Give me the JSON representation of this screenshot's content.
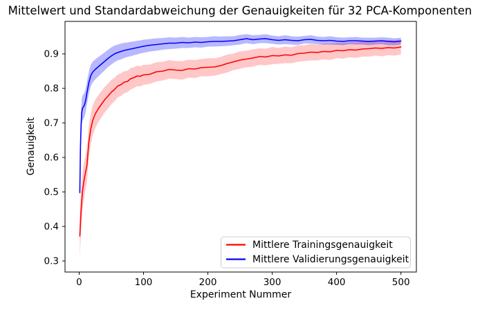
{
  "chart_data": {
    "type": "line",
    "title": "Mittelwert und Standardabweichung der Genauigkeiten für 32 PCA-Komponenten",
    "xlabel": "Experiment Nummer",
    "ylabel": "Genauigkeit",
    "xlim": [
      -22,
      524
    ],
    "ylim": [
      0.268,
      0.994
    ],
    "x_ticks": [
      0,
      100,
      200,
      300,
      400,
      500
    ],
    "y_ticks": [
      0.3,
      0.4,
      0.5,
      0.6,
      0.7,
      0.8,
      0.9
    ],
    "grid": false,
    "legend_position": "lower right",
    "x": [
      1,
      2,
      3,
      4,
      5,
      6,
      8,
      10,
      12,
      15,
      18,
      21,
      25,
      30,
      35,
      40,
      45,
      50,
      55,
      60,
      65,
      70,
      75,
      80,
      85,
      90,
      95,
      100,
      110,
      120,
      130,
      140,
      150,
      160,
      170,
      180,
      190,
      200,
      210,
      220,
      230,
      240,
      250,
      260,
      270,
      280,
      290,
      300,
      310,
      320,
      330,
      340,
      350,
      360,
      370,
      380,
      390,
      400,
      410,
      420,
      430,
      440,
      450,
      460,
      470,
      480,
      490,
      500
    ],
    "series": [
      {
        "name": "Mittlere Trainingsgenauigkeit",
        "color": "#ff0000",
        "band_opacity": 0.22,
        "values": [
          0.372,
          0.412,
          0.447,
          0.472,
          0.498,
          0.514,
          0.539,
          0.558,
          0.576,
          0.644,
          0.682,
          0.707,
          0.726,
          0.742,
          0.755,
          0.768,
          0.778,
          0.789,
          0.797,
          0.807,
          0.811,
          0.818,
          0.82,
          0.828,
          0.831,
          0.836,
          0.835,
          0.839,
          0.841,
          0.848,
          0.85,
          0.855,
          0.853,
          0.852,
          0.857,
          0.856,
          0.86,
          0.861,
          0.862,
          0.866,
          0.872,
          0.877,
          0.882,
          0.885,
          0.888,
          0.892,
          0.891,
          0.895,
          0.894,
          0.897,
          0.896,
          0.901,
          0.902,
          0.905,
          0.904,
          0.907,
          0.906,
          0.91,
          0.909,
          0.912,
          0.911,
          0.914,
          0.915,
          0.917,
          0.916,
          0.918,
          0.917,
          0.92
        ],
        "std": [
          0.062,
          0.06,
          0.058,
          0.057,
          0.055,
          0.054,
          0.051,
          0.049,
          0.048,
          0.046,
          0.044,
          0.043,
          0.041,
          0.039,
          0.038,
          0.037,
          0.036,
          0.035,
          0.034,
          0.033,
          0.033,
          0.032,
          0.031,
          0.031,
          0.03,
          0.03,
          0.029,
          0.029,
          0.028,
          0.028,
          0.027,
          0.027,
          0.026,
          0.027,
          0.026,
          0.026,
          0.025,
          0.026,
          0.025,
          0.025,
          0.026,
          0.024,
          0.025,
          0.024,
          0.025,
          0.024,
          0.024,
          0.025,
          0.023,
          0.024,
          0.023,
          0.024,
          0.023,
          0.024,
          0.023,
          0.023,
          0.024,
          0.022,
          0.023,
          0.022,
          0.023,
          0.022,
          0.023,
          0.022,
          0.023,
          0.022,
          0.022,
          0.022
        ]
      },
      {
        "name": "Mittlere Validierungsgenauigkeit",
        "color": "#0000ff",
        "band_opacity": 0.28,
        "values": [
          0.498,
          0.63,
          0.695,
          0.73,
          0.742,
          0.745,
          0.751,
          0.764,
          0.786,
          0.816,
          0.837,
          0.847,
          0.855,
          0.863,
          0.871,
          0.879,
          0.887,
          0.894,
          0.9,
          0.904,
          0.907,
          0.91,
          0.912,
          0.914,
          0.916,
          0.918,
          0.92,
          0.922,
          0.925,
          0.927,
          0.929,
          0.931,
          0.931,
          0.933,
          0.932,
          0.934,
          0.933,
          0.935,
          0.936,
          0.936,
          0.937,
          0.938,
          0.941,
          0.944,
          0.941,
          0.943,
          0.944,
          0.941,
          0.939,
          0.941,
          0.939,
          0.938,
          0.941,
          0.942,
          0.939,
          0.938,
          0.939,
          0.937,
          0.936,
          0.938,
          0.938,
          0.937,
          0.936,
          0.937,
          0.938,
          0.936,
          0.935,
          0.937
        ],
        "std": [
          0.042,
          0.04,
          0.039,
          0.038,
          0.037,
          0.036,
          0.035,
          0.034,
          0.033,
          0.032,
          0.031,
          0.03,
          0.029,
          0.028,
          0.027,
          0.026,
          0.025,
          0.025,
          0.024,
          0.023,
          0.023,
          0.022,
          0.021,
          0.021,
          0.02,
          0.02,
          0.019,
          0.019,
          0.018,
          0.018,
          0.017,
          0.017,
          0.016,
          0.016,
          0.015,
          0.015,
          0.015,
          0.014,
          0.015,
          0.014,
          0.014,
          0.013,
          0.014,
          0.013,
          0.013,
          0.012,
          0.013,
          0.012,
          0.012,
          0.013,
          0.012,
          0.012,
          0.011,
          0.012,
          0.011,
          0.011,
          0.012,
          0.011,
          0.011,
          0.01,
          0.011,
          0.01,
          0.011,
          0.01,
          0.01,
          0.011,
          0.01,
          0.01
        ]
      }
    ]
  }
}
